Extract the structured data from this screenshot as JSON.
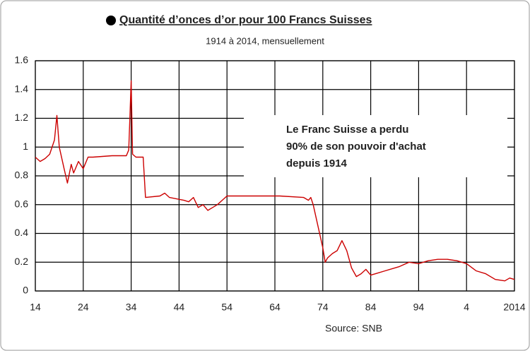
{
  "chart_data": {
    "type": "line",
    "title": "Quantité d’onces d’or pour 100 Francs Suisses",
    "subtitle": "1914 à 2014, mensuellement",
    "annotation": [
      "Le Franc Suisse a perdu",
      "90% de son pouvoir d'achat",
      "depuis 1914"
    ],
    "source": "Source: SNB",
    "x": [
      1914,
      1915,
      1916,
      1917,
      1918,
      1918.5,
      1919,
      1920,
      1920.7,
      1921.5,
      1922,
      1923,
      1924,
      1925,
      1926,
      1930,
      1933,
      1933.5,
      1934,
      1934.3,
      1935,
      1936.5,
      1937,
      1940,
      1941,
      1942,
      1945,
      1946,
      1947,
      1948,
      1949,
      1950,
      1951,
      1952,
      1953,
      1954,
      1960,
      1965,
      1970,
      1971,
      1971.5,
      1972,
      1973,
      1974,
      1974.5,
      1975,
      1976,
      1977,
      1978,
      1979,
      1980,
      1981,
      1982,
      1983,
      1984,
      1985,
      1987,
      1990,
      1992,
      1994,
      1996,
      1998,
      2000,
      2002,
      2004,
      2006,
      2008,
      2010,
      2012,
      2013,
      2014
    ],
    "series": [
      {
        "name": "Onces d'or",
        "color": "#cc0000",
        "values": [
          0.93,
          0.9,
          0.92,
          0.95,
          1.05,
          1.22,
          1.0,
          0.85,
          0.75,
          0.88,
          0.82,
          0.9,
          0.85,
          0.93,
          0.93,
          0.94,
          0.94,
          0.98,
          1.46,
          0.95,
          0.93,
          0.93,
          0.65,
          0.66,
          0.68,
          0.65,
          0.63,
          0.62,
          0.65,
          0.58,
          0.6,
          0.56,
          0.58,
          0.6,
          0.63,
          0.66,
          0.66,
          0.66,
          0.65,
          0.63,
          0.65,
          0.6,
          0.45,
          0.3,
          0.2,
          0.23,
          0.26,
          0.28,
          0.35,
          0.28,
          0.16,
          0.1,
          0.12,
          0.15,
          0.11,
          0.12,
          0.14,
          0.17,
          0.2,
          0.19,
          0.21,
          0.22,
          0.22,
          0.21,
          0.19,
          0.14,
          0.12,
          0.08,
          0.07,
          0.09,
          0.08
        ]
      }
    ],
    "xlim": [
      1914,
      2014
    ],
    "xticks": [
      {
        "value": 1914,
        "label": "14"
      },
      {
        "value": 1924,
        "label": "24"
      },
      {
        "value": 1934,
        "label": "34"
      },
      {
        "value": 1944,
        "label": "44"
      },
      {
        "value": 1954,
        "label": "54"
      },
      {
        "value": 1964,
        "label": "64"
      },
      {
        "value": 1974,
        "label": "74"
      },
      {
        "value": 1984,
        "label": "84"
      },
      {
        "value": 1994,
        "label": "94"
      },
      {
        "value": 2004,
        "label": "4"
      },
      {
        "value": 2014,
        "label": "2014"
      }
    ],
    "ylim": [
      0,
      1.6
    ],
    "yticks": [
      0,
      0.2,
      0.4,
      0.6,
      0.8,
      1,
      1.2,
      1.4,
      1.6
    ],
    "grid": true
  }
}
